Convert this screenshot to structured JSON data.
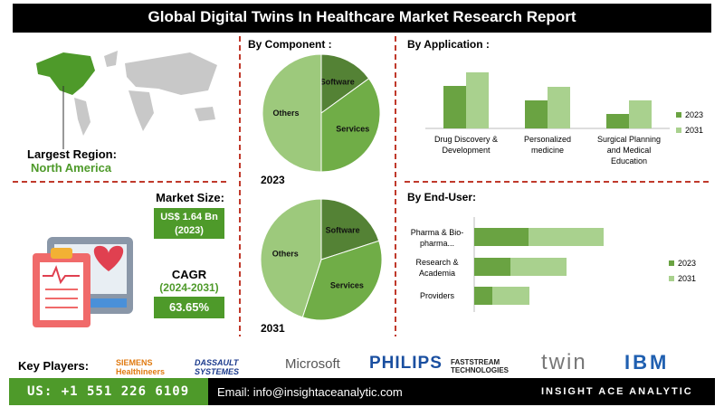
{
  "header": {
    "title": "Global Digital Twins In Healthcare Market Research Report"
  },
  "summary": {
    "region_label": "Largest Region:",
    "region": "North America",
    "market_size_label": "Market Size:",
    "market_size": "US$ 1.64 Bn",
    "market_size_year": "(2023)",
    "cagr_label": "CAGR",
    "cagr_period": "(2024-2031)",
    "cagr": "63.65%"
  },
  "sections": {
    "component": "By Component :"
  },
  "chart_data": [
    {
      "type": "pie",
      "title": "2023",
      "categories": [
        "Software",
        "Services",
        "Others"
      ],
      "values": [
        15,
        35,
        50
      ],
      "colors": [
        "#548235",
        "#70ad47",
        "#9dc97c"
      ]
    },
    {
      "type": "pie",
      "title": "2031",
      "categories": [
        "Software",
        "Services",
        "Others"
      ],
      "values": [
        20,
        35,
        45
      ],
      "colors": [
        "#548235",
        "#70ad47",
        "#9dc97c"
      ]
    },
    {
      "type": "bar",
      "title": "By Application :",
      "categories": [
        "Drug Discovery & Development",
        "Personalized medicine",
        "Surgical Planning and Medical Education"
      ],
      "series": [
        {
          "name": "2023",
          "color": "#6aa342",
          "values": [
            47,
            31,
            16
          ]
        },
        {
          "name": "2031",
          "color": "#a9d18e",
          "values": [
            62,
            46,
            31
          ]
        }
      ],
      "legend": "right"
    },
    {
      "type": "hbar",
      "title": "By End-User:",
      "stacked": true,
      "categories": [
        "Pharma & Bio-pharma...",
        "Research & Academia",
        "Providers"
      ],
      "series": [
        {
          "name": "2023",
          "color": "#6aa342",
          "values": [
            60,
            40,
            20
          ]
        },
        {
          "name": "2031",
          "color": "#a9d18e",
          "values": [
            83,
            62,
            41
          ]
        }
      ],
      "legend": "right"
    }
  ],
  "footer": {
    "key_players_label": "Key Players:",
    "players": [
      "SIEMENS Healthineers",
      "DASSAULT SYSTEMES",
      "Microsoft",
      "PHILIPS",
      "FASTSTREAM TECHNOLOGIES",
      "twin",
      "IBM"
    ],
    "phone": "US: +1 551 226 6109",
    "email": "Email: info@insightaceanalytic.com",
    "brand": "INSIGHT ACE ANALYTIC"
  }
}
